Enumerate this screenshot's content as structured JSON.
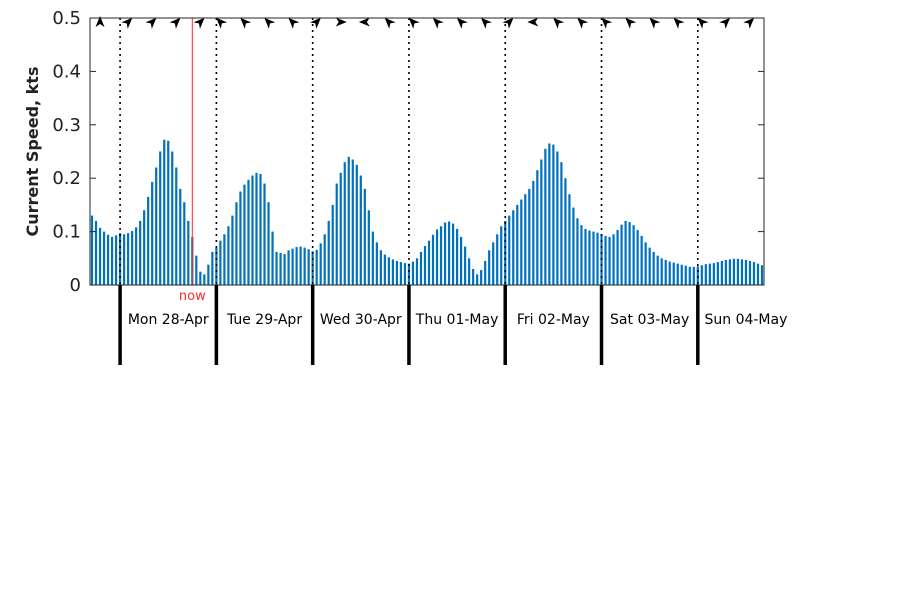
{
  "chart_data": {
    "type": "bar",
    "ylabel": "Current Speed, kts",
    "ylim": [
      0,
      0.5
    ],
    "yticks": [
      "0",
      "0.1",
      "0.2",
      "0.3",
      "0.4",
      "0.5"
    ],
    "bar_color": "#0072bd",
    "now_color": "#ff2a2a",
    "now_label": "now",
    "now_index": 26,
    "day_start_indices": [
      7,
      31,
      55,
      79,
      103,
      127,
      151
    ],
    "days": [
      "Mon 28-Apr",
      "Tue 29-Apr",
      "Wed 30-Apr",
      "Thu 01-May",
      "Fri 02-May",
      "Sat 03-May",
      "Sun 04-May"
    ],
    "values": [
      0.13,
      0.12,
      0.107,
      0.1,
      0.094,
      0.09,
      0.093,
      0.097,
      0.095,
      0.097,
      0.101,
      0.108,
      0.12,
      0.14,
      0.165,
      0.193,
      0.22,
      0.25,
      0.272,
      0.27,
      0.25,
      0.22,
      0.18,
      0.155,
      0.12,
      0.09,
      0.055,
      0.025,
      0.02,
      0.038,
      0.062,
      0.07,
      0.083,
      0.095,
      0.11,
      0.13,
      0.155,
      0.175,
      0.188,
      0.197,
      0.205,
      0.21,
      0.208,
      0.19,
      0.155,
      0.1,
      0.062,
      0.06,
      0.058,
      0.065,
      0.068,
      0.071,
      0.072,
      0.07,
      0.067,
      0.063,
      0.066,
      0.078,
      0.095,
      0.12,
      0.15,
      0.19,
      0.21,
      0.23,
      0.24,
      0.235,
      0.225,
      0.205,
      0.18,
      0.14,
      0.1,
      0.08,
      0.065,
      0.057,
      0.052,
      0.048,
      0.045,
      0.043,
      0.041,
      0.04,
      0.044,
      0.05,
      0.062,
      0.073,
      0.083,
      0.094,
      0.104,
      0.11,
      0.117,
      0.119,
      0.115,
      0.105,
      0.09,
      0.072,
      0.05,
      0.03,
      0.02,
      0.028,
      0.045,
      0.065,
      0.08,
      0.095,
      0.11,
      0.12,
      0.13,
      0.14,
      0.15,
      0.16,
      0.17,
      0.18,
      0.195,
      0.215,
      0.235,
      0.255,
      0.265,
      0.263,
      0.25,
      0.23,
      0.2,
      0.17,
      0.145,
      0.125,
      0.112,
      0.105,
      0.102,
      0.1,
      0.098,
      0.095,
      0.092,
      0.09,
      0.095,
      0.103,
      0.113,
      0.12,
      0.118,
      0.112,
      0.103,
      0.092,
      0.08,
      0.07,
      0.062,
      0.055,
      0.05,
      0.047,
      0.044,
      0.042,
      0.04,
      0.038,
      0.036,
      0.034,
      0.034,
      0.035,
      0.037,
      0.039,
      0.04,
      0.041,
      0.043,
      0.045,
      0.047,
      0.048,
      0.049,
      0.049,
      0.048,
      0.047,
      0.045,
      0.043,
      0.04,
      0.037
    ],
    "arrows": [
      {
        "index": 2,
        "direction": "N"
      },
      {
        "index": 9,
        "direction": "NE"
      },
      {
        "index": 15,
        "direction": "NE"
      },
      {
        "index": 21,
        "direction": "NE"
      },
      {
        "index": 27,
        "direction": "NE"
      },
      {
        "index": 32,
        "direction": "NW"
      },
      {
        "index": 38,
        "direction": "NW"
      },
      {
        "index": 44,
        "direction": "NW"
      },
      {
        "index": 50,
        "direction": "NW"
      },
      {
        "index": 56,
        "direction": "NE"
      },
      {
        "index": 62,
        "direction": "E"
      },
      {
        "index": 68,
        "direction": "W"
      },
      {
        "index": 74,
        "direction": "NW"
      },
      {
        "index": 80,
        "direction": "NW"
      },
      {
        "index": 86,
        "direction": "NW"
      },
      {
        "index": 92,
        "direction": "NW"
      },
      {
        "index": 98,
        "direction": "NW"
      },
      {
        "index": 104,
        "direction": "NE"
      },
      {
        "index": 110,
        "direction": "W"
      },
      {
        "index": 116,
        "direction": "NW"
      },
      {
        "index": 122,
        "direction": "NW"
      },
      {
        "index": 128,
        "direction": "NW"
      },
      {
        "index": 134,
        "direction": "NW"
      },
      {
        "index": 140,
        "direction": "NW"
      },
      {
        "index": 146,
        "direction": "NW"
      },
      {
        "index": 152,
        "direction": "NW"
      },
      {
        "index": 158,
        "direction": "NE"
      },
      {
        "index": 164,
        "direction": "NE"
      }
    ]
  }
}
